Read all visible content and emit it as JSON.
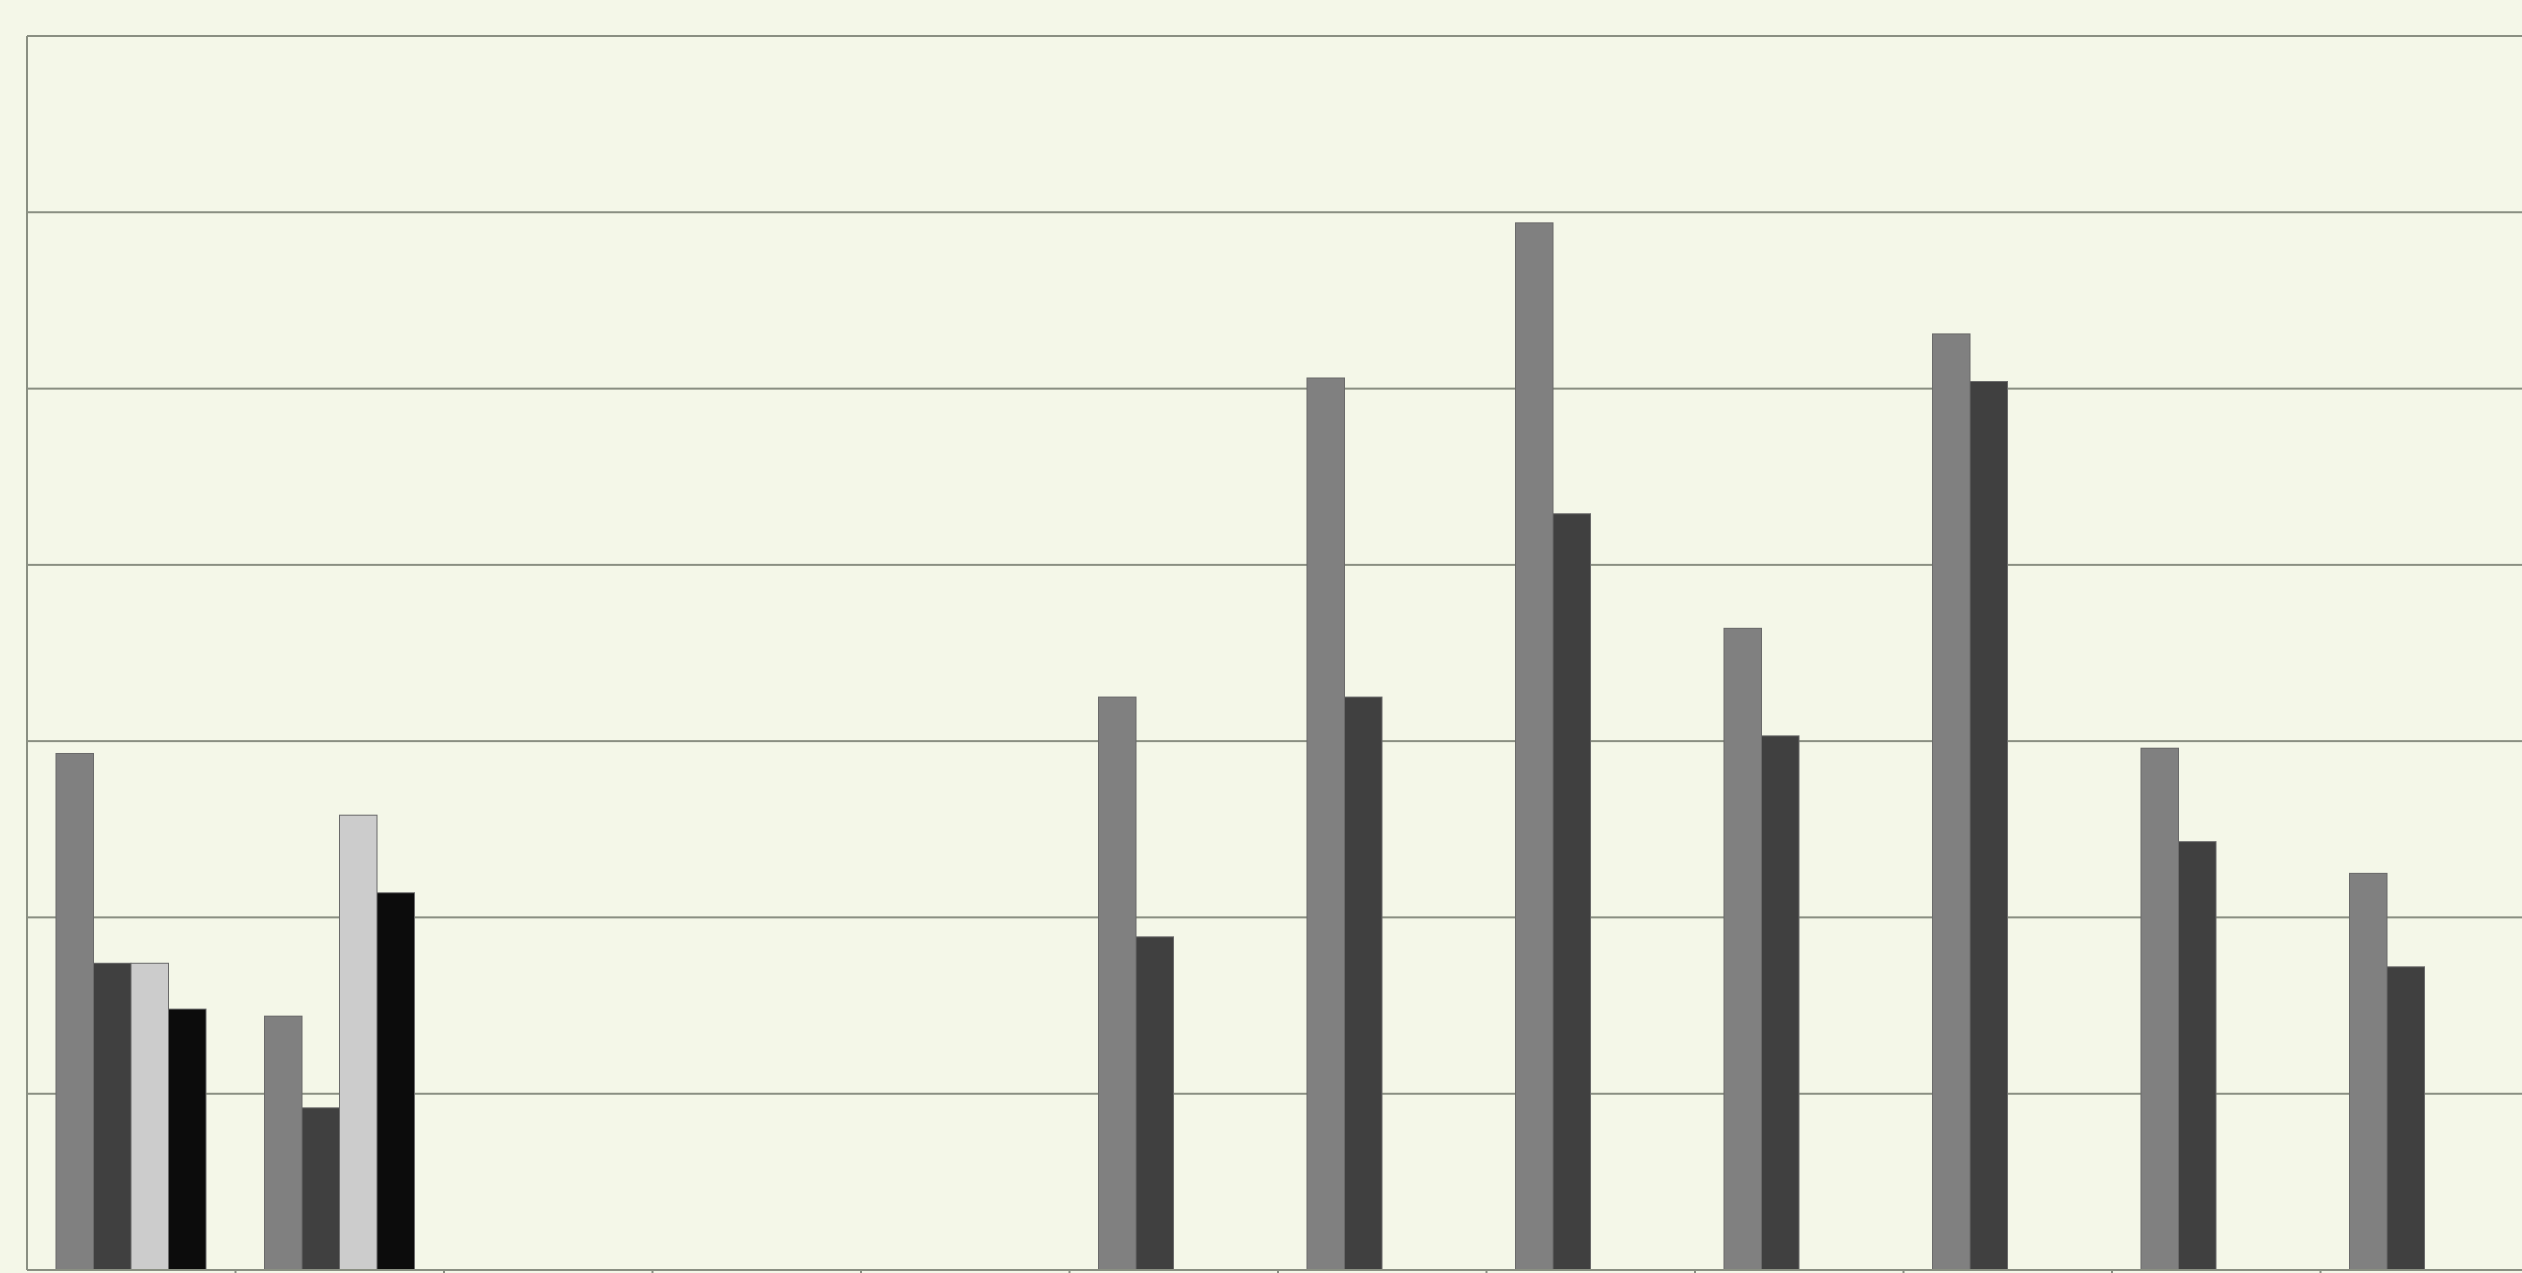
{
  "chart_data": {
    "type": "bar",
    "title": "",
    "xlabel": "",
    "ylabel": "",
    "ylim": [
      0,
      7
    ],
    "grid": true,
    "legend": "none",
    "categories": [
      "",
      "",
      "",
      "",
      "",
      "",
      "",
      "",
      "",
      "",
      "",
      ""
    ],
    "series": [
      {
        "color": "#808080",
        "values": [
          2.93,
          1.44,
          null,
          null,
          null,
          3.25,
          5.06,
          5.94,
          3.64,
          5.31,
          2.96,
          2.25
        ]
      },
      {
        "color": "#404040",
        "values": [
          1.74,
          0.92,
          null,
          null,
          null,
          1.89,
          3.25,
          4.29,
          3.03,
          5.04,
          2.43,
          1.72
        ]
      },
      {
        "color": "#cccccc",
        "values": [
          1.74,
          2.58,
          null,
          null,
          null,
          null,
          null,
          null,
          null,
          null,
          null,
          null
        ]
      },
      {
        "color": "#0c0c0c",
        "values": [
          1.48,
          2.14,
          null,
          null,
          null,
          null,
          null,
          null,
          null,
          null,
          null,
          null
        ]
      }
    ]
  }
}
